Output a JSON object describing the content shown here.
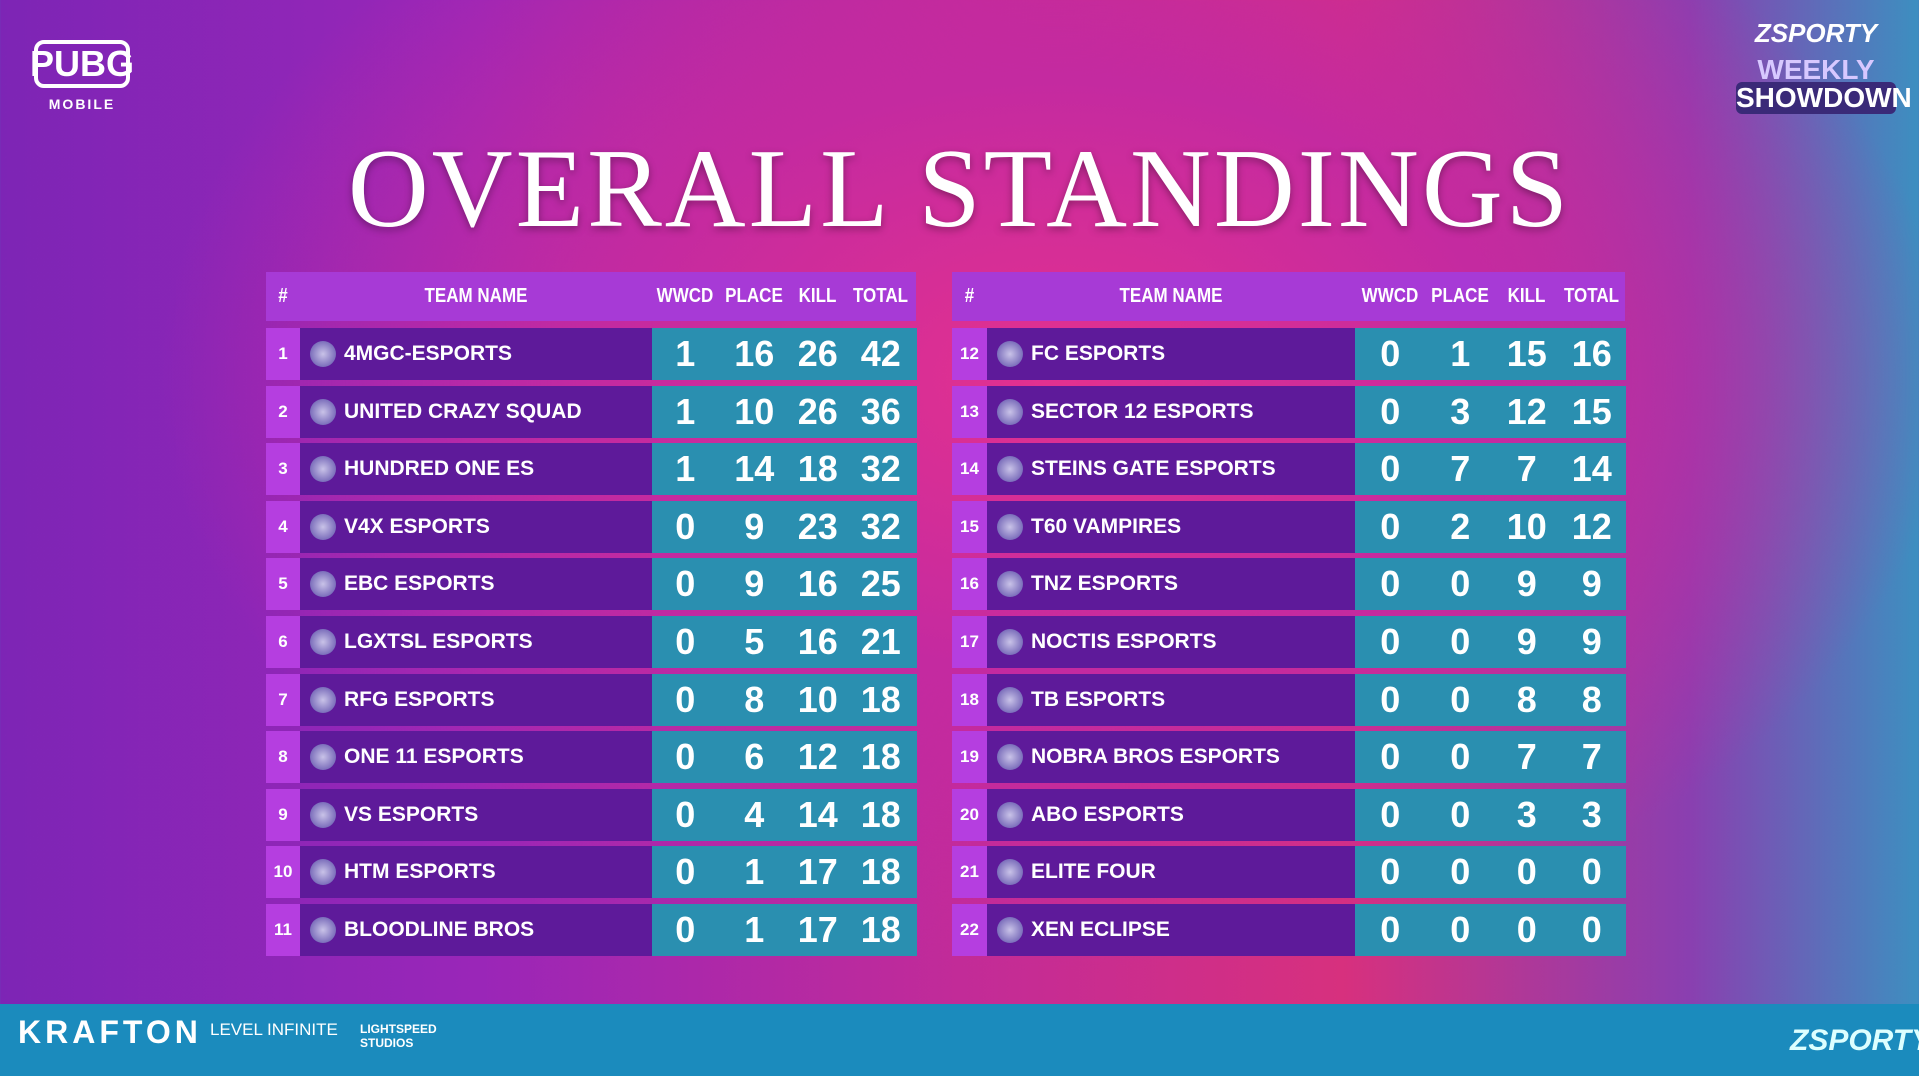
{
  "brand": {
    "pubg": "PUBG",
    "mobile": "MOBILE",
    "zsporty": "ZSPORTY",
    "weekly": "WEEKLY",
    "showdown": "SHOWDOWN"
  },
  "title": "OVERALL STANDINGS",
  "tables": [
    {
      "header": [
        "#",
        "TEAM NAME",
        "WWCD",
        "PLACE",
        "KILL",
        "TOTAL"
      ],
      "rows": [
        {
          "rank": 1,
          "name": "4MGC-ESPORTS",
          "wwcd": 1,
          "place": 16,
          "kill": 26,
          "total": 42
        },
        {
          "rank": 2,
          "name": "UNITED CRAZY SQUAD",
          "wwcd": 1,
          "place": 10,
          "kill": 26,
          "total": 36
        },
        {
          "rank": 3,
          "name": "HUNDRED ONE ES",
          "wwcd": 1,
          "place": 14,
          "kill": 18,
          "total": 32
        },
        {
          "rank": 4,
          "name": "V4X ESPORTS",
          "wwcd": 0,
          "place": 9,
          "kill": 23,
          "total": 32
        },
        {
          "rank": 5,
          "name": "EBC ESPORTS",
          "wwcd": 0,
          "place": 9,
          "kill": 16,
          "total": 25
        },
        {
          "rank": 6,
          "name": "LGXTSL ESPORTS",
          "wwcd": 0,
          "place": 5,
          "kill": 16,
          "total": 21
        },
        {
          "rank": 7,
          "name": "RFG ESPORTS",
          "wwcd": 0,
          "place": 8,
          "kill": 10,
          "total": 18
        },
        {
          "rank": 8,
          "name": "ONE 11 ESPORTS",
          "wwcd": 0,
          "place": 6,
          "kill": 12,
          "total": 18
        },
        {
          "rank": 9,
          "name": "VS ESPORTS",
          "wwcd": 0,
          "place": 4,
          "kill": 14,
          "total": 18
        },
        {
          "rank": 10,
          "name": "HTM ESPORTS",
          "wwcd": 0,
          "place": 1,
          "kill": 17,
          "total": 18
        },
        {
          "rank": 11,
          "name": "BLOODLINE BROS",
          "wwcd": 0,
          "place": 1,
          "kill": 17,
          "total": 18
        }
      ]
    },
    {
      "header": [
        "#",
        "TEAM NAME",
        "WWCD",
        "PLACE",
        "KILL",
        "TOTAL"
      ],
      "rows": [
        {
          "rank": 12,
          "name": "FC ESPORTS",
          "wwcd": 0,
          "place": 1,
          "kill": 15,
          "total": 16
        },
        {
          "rank": 13,
          "name": "SECTOR 12 ESPORTS",
          "wwcd": 0,
          "place": 3,
          "kill": 12,
          "total": 15
        },
        {
          "rank": 14,
          "name": "STEINS GATE ESPORTS",
          "wwcd": 0,
          "place": 7,
          "kill": 7,
          "total": 14
        },
        {
          "rank": 15,
          "name": "T60 VAMPIRES",
          "wwcd": 0,
          "place": 2,
          "kill": 10,
          "total": 12
        },
        {
          "rank": 16,
          "name": "TNZ ESPORTS",
          "wwcd": 0,
          "place": 0,
          "kill": 9,
          "total": 9
        },
        {
          "rank": 17,
          "name": "NOCTIS ESPORTS",
          "wwcd": 0,
          "place": 0,
          "kill": 9,
          "total": 9
        },
        {
          "rank": 18,
          "name": "TB ESPORTS",
          "wwcd": 0,
          "place": 0,
          "kill": 8,
          "total": 8
        },
        {
          "rank": 19,
          "name": "NOBRA BROS ESPORTS",
          "wwcd": 0,
          "place": 0,
          "kill": 7,
          "total": 7
        },
        {
          "rank": 20,
          "name": "ABO ESPORTS",
          "wwcd": 0,
          "place": 0,
          "kill": 3,
          "total": 3
        },
        {
          "rank": 21,
          "name": "ELITE FOUR",
          "wwcd": 0,
          "place": 0,
          "kill": 0,
          "total": 0
        },
        {
          "rank": 22,
          "name": "XEN ECLIPSE",
          "wwcd": 0,
          "place": 0,
          "kill": 0,
          "total": 0
        }
      ]
    }
  ],
  "footer": {
    "krafton": "KRAFTON",
    "level_infinite": "LEVEL INFINITE",
    "lightspeed": "LIGHTSPEED STUDIOS",
    "zsporty": "ZSPORTY"
  }
}
